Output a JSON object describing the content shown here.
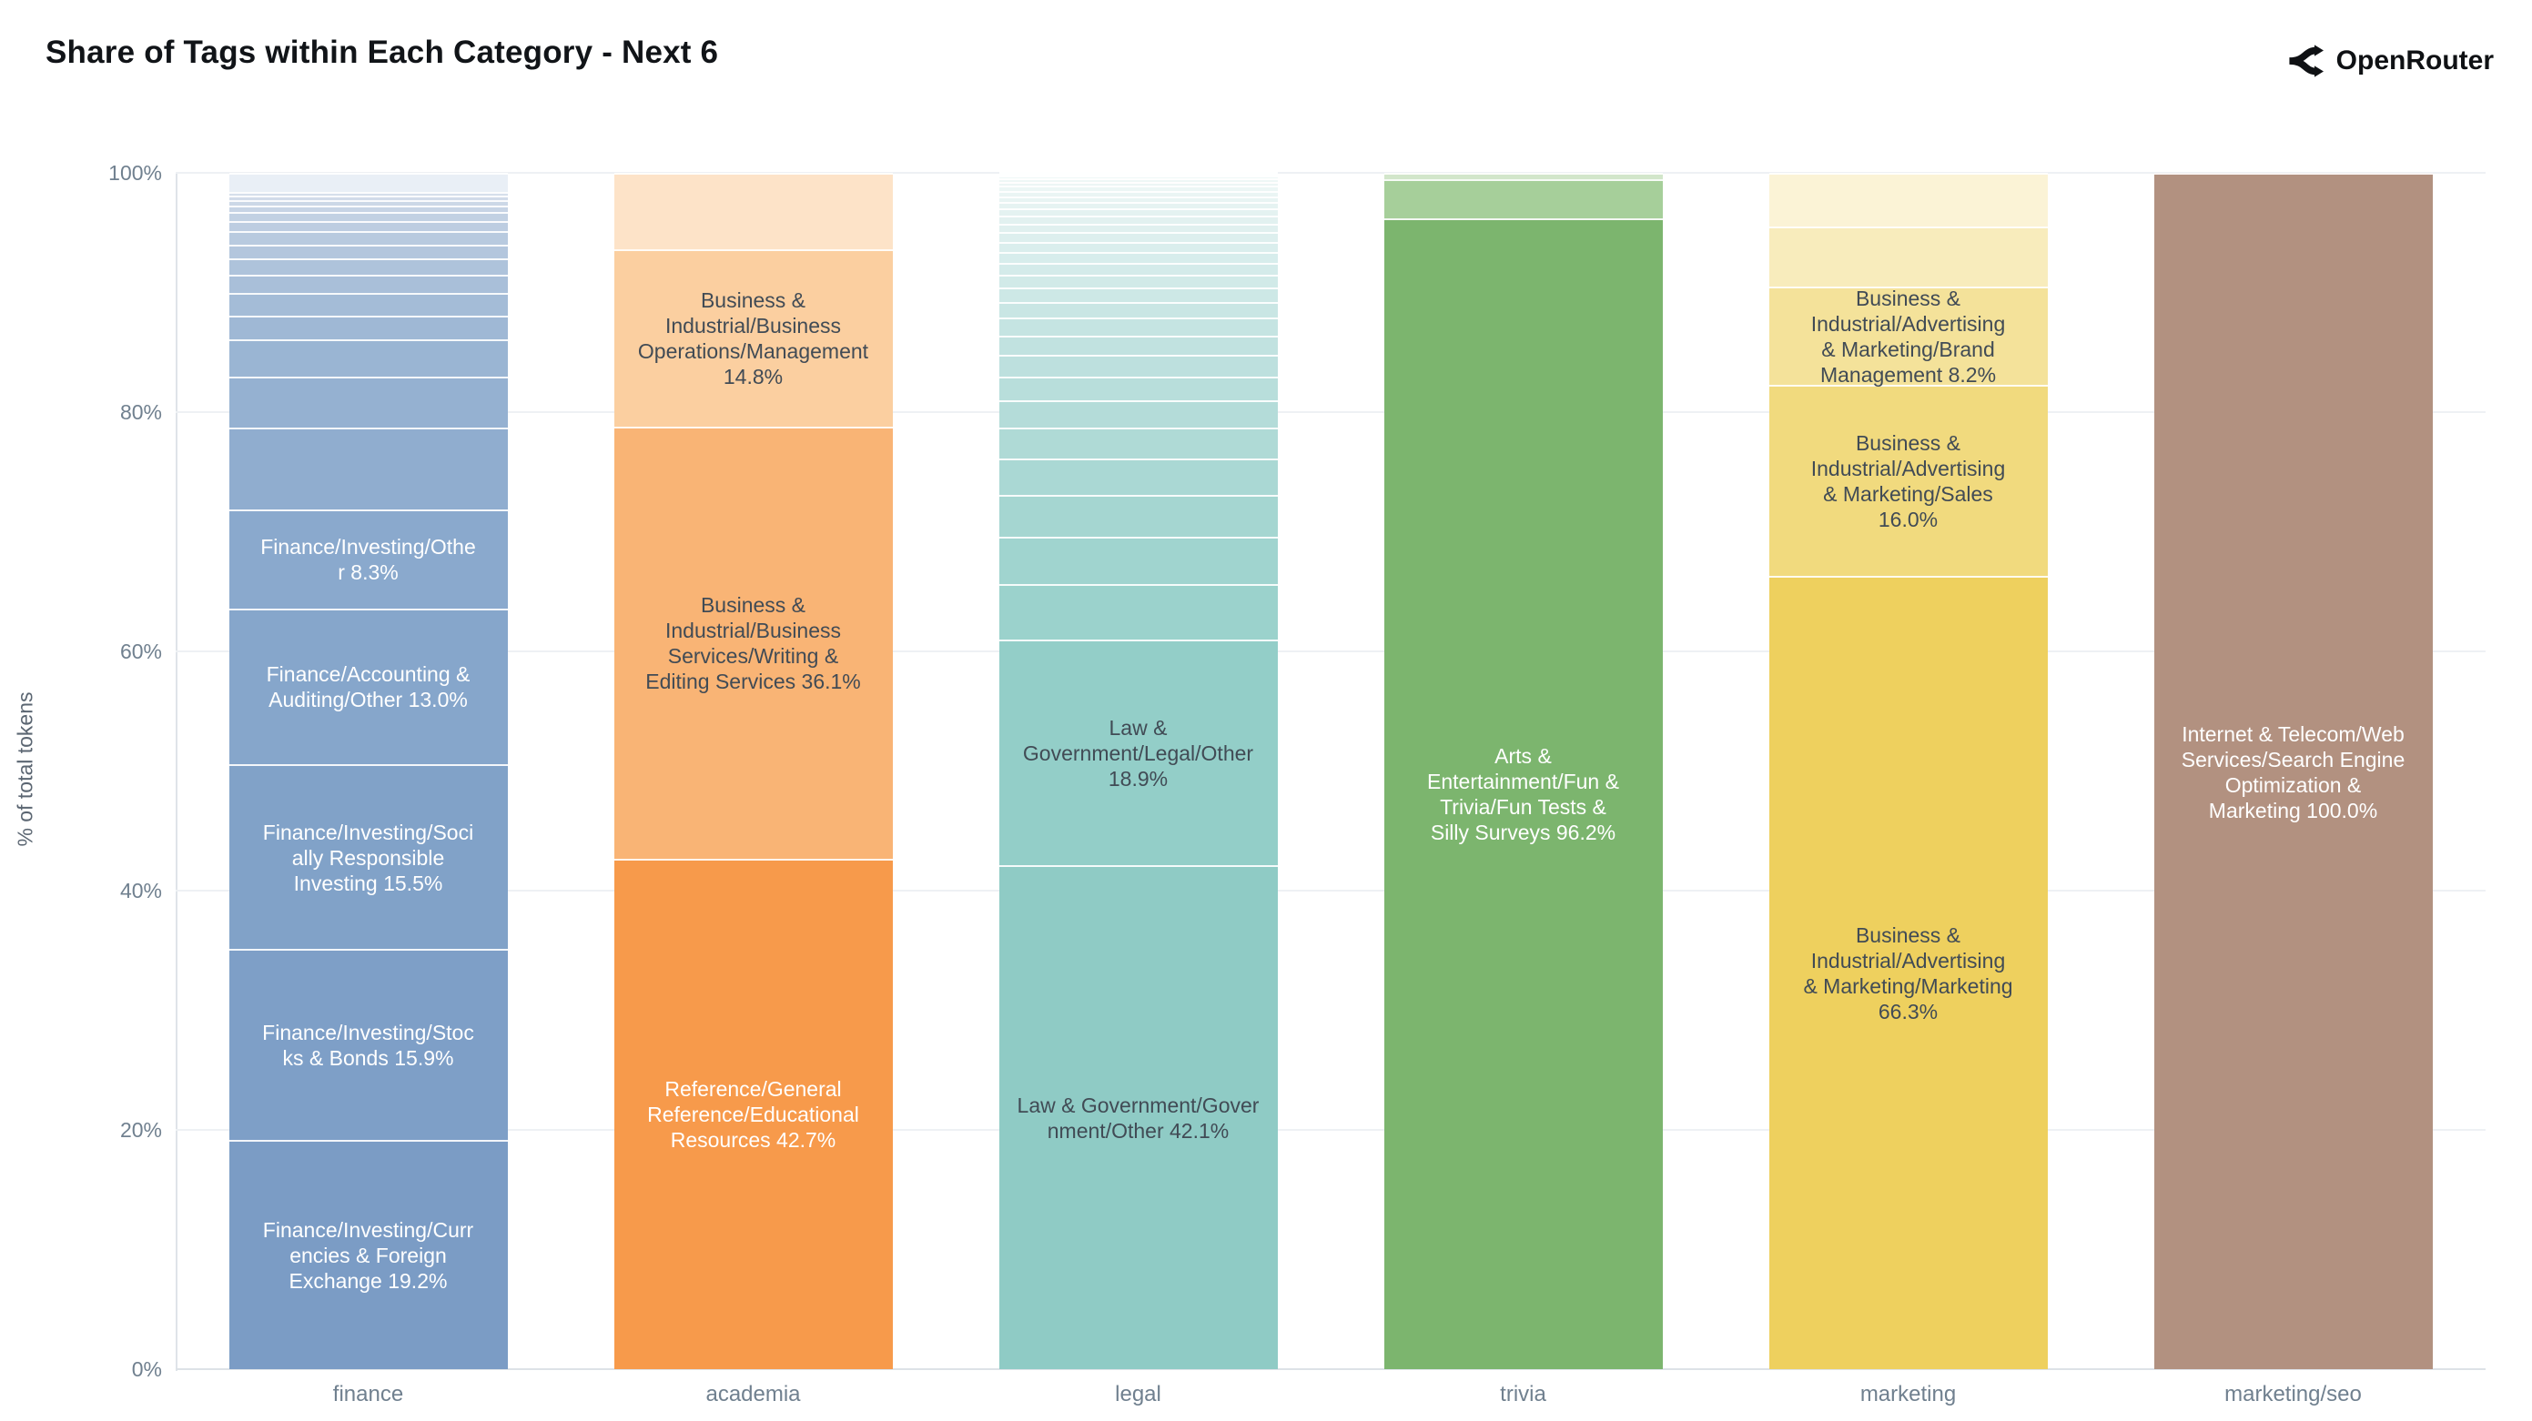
{
  "header": {
    "title": "Share of Tags within Each Category - Next 6",
    "logo_text": "OpenRouter"
  },
  "chart_data": {
    "type": "bar",
    "stacked": true,
    "title": "Share of Tags within Each Category - Next 6",
    "xlabel": "",
    "ylabel": "% of total tokens",
    "ylim": [
      0,
      100
    ],
    "grid": true,
    "legend": false,
    "categories": [
      "finance",
      "academia",
      "legal",
      "trivia",
      "marketing",
      "marketing/seo"
    ],
    "yticks": [
      {
        "label": "0%",
        "value": 0
      },
      {
        "label": "20%",
        "value": 20
      },
      {
        "label": "40%",
        "value": 40
      },
      {
        "label": "60%",
        "value": 60
      },
      {
        "label": "80%",
        "value": 80
      },
      {
        "label": "100%",
        "value": 100
      }
    ],
    "bars": [
      {
        "category": "finance",
        "segments": [
          {
            "value": 19.2,
            "label": "Finance/Investing/Curr\nencies & Foreign\nExchange 19.2%",
            "color": "#7b9cc5",
            "text_color": "#ffffff"
          },
          {
            "value": 15.9,
            "label": "Finance/Investing/Stoc\nks & Bonds 15.9%",
            "color": "#7e9fc7",
            "text_color": "#ffffff"
          },
          {
            "value": 15.5,
            "label": "Finance/Investing/Soci\nally Responsible\nInvesting 15.5%",
            "color": "#81a2c8",
            "text_color": "#ffffff"
          },
          {
            "value": 13.0,
            "label": "Finance/Accounting &\nAuditing/Other 13.0%",
            "color": "#86a6cb",
            "text_color": "#ffffff"
          },
          {
            "value": 8.3,
            "label": "Finance/Investing/Othe\nr 8.3%",
            "color": "#8aa9cd",
            "text_color": "#ffffff"
          },
          {
            "value": 6.8,
            "color": "#90adcf"
          },
          {
            "value": 4.3,
            "color": "#95b1d1"
          },
          {
            "value": 3.1,
            "color": "#9ab5d3"
          },
          {
            "value": 2.0,
            "color": "#9fb8d5"
          },
          {
            "value": 1.9,
            "color": "#a4bcd7"
          },
          {
            "value": 1.45,
            "color": "#a9bfd9"
          },
          {
            "value": 1.4,
            "color": "#aec3db"
          },
          {
            "value": 1.15,
            "color": "#b3c6dd"
          },
          {
            "value": 1.1,
            "color": "#b8cadf"
          },
          {
            "value": 0.9,
            "color": "#bdcde1"
          },
          {
            "value": 0.75,
            "color": "#c2d1e3"
          },
          {
            "value": 0.55,
            "color": "#c7d4e5"
          },
          {
            "value": 0.45,
            "color": "#ccd8e7"
          },
          {
            "value": 0.35,
            "color": "#d1dbe9"
          },
          {
            "value": 0.3,
            "color": "#d6dfeb"
          },
          {
            "value": 1.6,
            "color": "#e9eff6"
          }
        ]
      },
      {
        "category": "academia",
        "segments": [
          {
            "value": 42.7,
            "label": "Reference/General\nReference/Educational\nResources 42.7%",
            "color": "#f79a4b",
            "text_color": "#ffffff"
          },
          {
            "value": 36.1,
            "label": "Business &\nIndustrial/Business\nServices/Writing &\nEditing Services 36.1%",
            "color": "#f9b475",
            "text_color": "#414b55"
          },
          {
            "value": 14.8,
            "label": "Business &\nIndustrial/Business\nOperations/Management\n14.8%",
            "color": "#fbcfa0",
            "text_color": "#414b55"
          },
          {
            "value": 6.4,
            "color": "#fde3c8"
          }
        ]
      },
      {
        "category": "legal",
        "segments": [
          {
            "value": 42.1,
            "label": "Law & Government/Gover\nnment/Other 42.1%",
            "color": "#8fcbc5",
            "text_color": "#414b55"
          },
          {
            "value": 18.9,
            "label": "Law &\nGovernment/Legal/Other\n18.9%",
            "color": "#93cec8",
            "text_color": "#414b55"
          },
          {
            "value": 4.6,
            "color": "#9bd2cc"
          },
          {
            "value": 4.0,
            "color": "#a0d4cf"
          },
          {
            "value": 3.5,
            "color": "#a5d6d1"
          },
          {
            "value": 3.0,
            "color": "#aad8d4"
          },
          {
            "value": 2.6,
            "color": "#afdad6"
          },
          {
            "value": 2.3,
            "color": "#b4dcd9"
          },
          {
            "value": 2.0,
            "color": "#b8dedb"
          },
          {
            "value": 1.8,
            "color": "#bde0de"
          },
          {
            "value": 1.6,
            "color": "#c1e2e0"
          },
          {
            "value": 1.5,
            "color": "#c5e4e2"
          },
          {
            "value": 1.3,
            "color": "#c9e6e4"
          },
          {
            "value": 1.2,
            "color": "#cde8e6"
          },
          {
            "value": 1.1,
            "color": "#d1eae8"
          },
          {
            "value": 1.0,
            "color": "#d4ebea"
          },
          {
            "value": 0.9,
            "color": "#d7edec"
          },
          {
            "value": 0.85,
            "color": "#daeeed"
          },
          {
            "value": 0.8,
            "color": "#ddefee"
          },
          {
            "value": 0.7,
            "color": "#e0f0ef"
          },
          {
            "value": 0.65,
            "color": "#e2f1f0"
          },
          {
            "value": 0.6,
            "color": "#e4f2f1"
          },
          {
            "value": 0.55,
            "color": "#e6f3f2"
          },
          {
            "value": 0.5,
            "color": "#e8f4f3"
          },
          {
            "value": 0.45,
            "color": "#eaf5f4"
          },
          {
            "value": 0.4,
            "color": "#ecf6f5"
          },
          {
            "value": 0.35,
            "color": "#edf6f5"
          },
          {
            "value": 0.3,
            "color": "#eef7f6"
          },
          {
            "value": 0.2,
            "color": "#f0f8f7"
          },
          {
            "value": 0.15,
            "color": "#f1f8f7"
          },
          {
            "value": 0.1,
            "color": "#f2f9f8"
          }
        ]
      },
      {
        "category": "trivia",
        "segments": [
          {
            "value": 96.2,
            "label": "Arts &\nEntertainment/Fun &\nTrivia/Fun Tests &\nSilly Surveys 96.2%",
            "color": "#7cb56e",
            "text_color": "#ffffff"
          },
          {
            "value": 3.3,
            "color": "#a6cf9a"
          },
          {
            "value": 0.5,
            "color": "#d2e6ca"
          }
        ]
      },
      {
        "category": "marketing",
        "segments": [
          {
            "value": 66.3,
            "label": "Business &\nIndustrial/Advertising\n& Marketing/Marketing\n66.3%",
            "color": "#eed05e",
            "text_color": "#414b55"
          },
          {
            "value": 16.0,
            "label": "Business &\nIndustrial/Advertising\n& Marketing/Sales\n16.0%",
            "color": "#f1da7e",
            "text_color": "#414b55"
          },
          {
            "value": 8.2,
            "label": "Business &\nIndustrial/Advertising\n& Marketing/Brand\nManagement 8.2%",
            "color": "#f4e29a",
            "text_color": "#414b55"
          },
          {
            "value": 5.0,
            "color": "#f8ecbc"
          },
          {
            "value": 4.5,
            "color": "#fbf3d6"
          }
        ]
      },
      {
        "category": "marketing/seo",
        "segments": [
          {
            "value": 100.0,
            "label": "Internet & Telecom/Web\nServices/Search Engine\nOptimization &\nMarketing 100.0%",
            "color": "#b29180",
            "text_color": "#ffffff"
          }
        ]
      }
    ]
  }
}
